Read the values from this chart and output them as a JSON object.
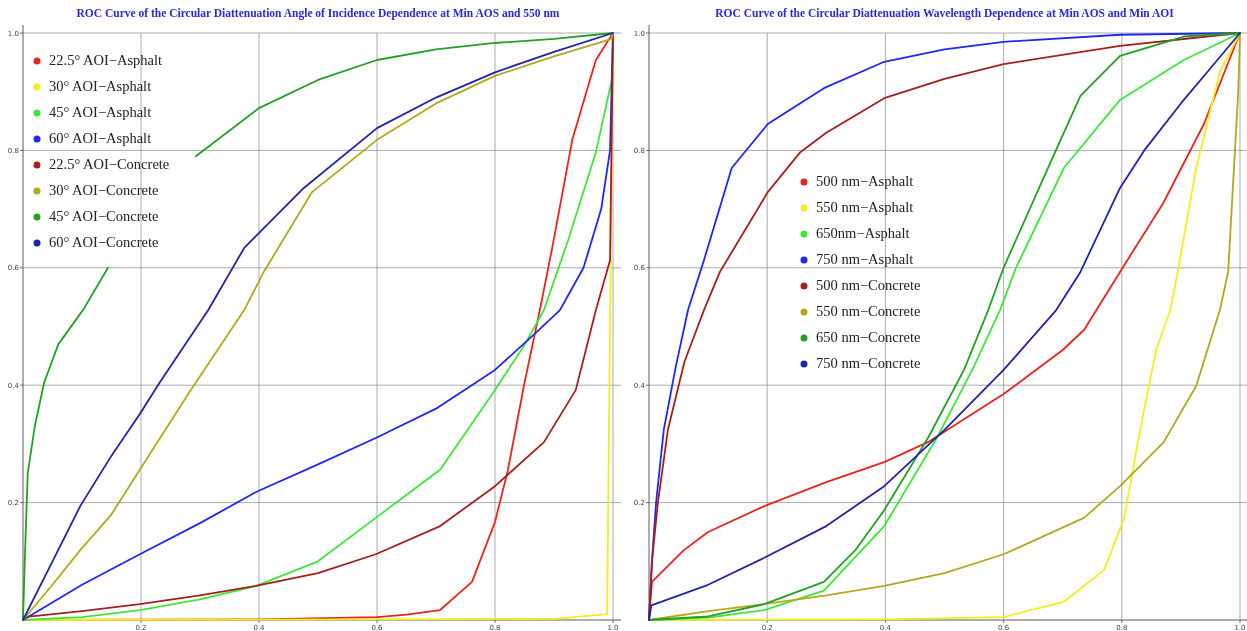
{
  "chart_data": [
    {
      "type": "line",
      "title": "ROC Curve of the Circular Diattenuation Angle of Incidence Dependence at Min AOS and 550 nm",
      "xlim": [
        0,
        1
      ],
      "ylim": [
        0,
        1
      ],
      "xticks": [
        0.2,
        0.4,
        0.6,
        0.8,
        {
          "value": 1,
          "label": "1.0"
        }
      ],
      "yticks": [
        0.2,
        0.4,
        0.6,
        0.8,
        {
          "value": 1,
          "label": "1.0"
        }
      ],
      "grid": true,
      "legend": "top left",
      "marker": "none",
      "line_style": "solid",
      "series": [
        {
          "name": "22.5° AOI−Asphalt",
          "color": "#e8241e",
          "x": [
            0,
            0.4,
            0.6,
            0.65,
            0.707,
            0.761,
            0.8,
            0.822,
            0.849,
            0.876,
            0.897,
            0.931,
            0.971,
            1
          ],
          "values": [
            0,
            0.001,
            0.005,
            0.009,
            0.017,
            0.065,
            0.167,
            0.256,
            0.399,
            0.528,
            0.634,
            0.818,
            0.954,
            1
          ]
        },
        {
          "name": "30° AOI−Asphalt",
          "color": "#f2ee1c",
          "x": [
            0,
            0.6,
            0.9,
            0.99,
            1
          ],
          "values": [
            0,
            0.001,
            0.002,
            0.01,
            1
          ]
        },
        {
          "name": "45° AOI−Asphalt",
          "color": "#3ee63a",
          "x": [
            0,
            0.1,
            0.198,
            0.3,
            0.395,
            0.5,
            0.598,
            0.707,
            0.8,
            0.849,
            0.883,
            0.924,
            0.971,
            0.998,
            1
          ],
          "values": [
            0,
            0.005,
            0.017,
            0.035,
            0.058,
            0.1,
            0.174,
            0.256,
            0.392,
            0.467,
            0.528,
            0.647,
            0.797,
            0.92,
            1
          ]
        },
        {
          "name": "60° AOI−Asphalt",
          "color": "#1f28f0",
          "x": [
            0,
            0.1,
            0.198,
            0.3,
            0.395,
            0.5,
            0.598,
            0.7,
            0.8,
            0.87,
            0.91,
            0.95,
            0.98,
            0.995,
            1
          ],
          "values": [
            0,
            0.06,
            0.112,
            0.165,
            0.218,
            0.265,
            0.31,
            0.36,
            0.426,
            0.49,
            0.528,
            0.6,
            0.7,
            0.8,
            1
          ]
        },
        {
          "name": "22.5° AOI−Concrete",
          "color": "#a3201c",
          "x": [
            0,
            0.002,
            0.1,
            0.198,
            0.3,
            0.395,
            0.5,
            0.598,
            0.707,
            0.8,
            0.883,
            0.937,
            0.971,
            0.995,
            1
          ],
          "values": [
            0,
            0.005,
            0.015,
            0.027,
            0.042,
            0.058,
            0.08,
            0.112,
            0.16,
            0.228,
            0.303,
            0.392,
            0.528,
            0.613,
            1
          ]
        },
        {
          "name": "30° AOI−Concrete",
          "color": "#b2a81e",
          "x": [
            0,
            0.05,
            0.097,
            0.15,
            0.198,
            0.28,
            0.375,
            0.408,
            0.49,
            0.6,
            0.7,
            0.8,
            0.9,
            0.998,
            1
          ],
          "values": [
            0,
            0.06,
            0.119,
            0.18,
            0.256,
            0.385,
            0.528,
            0.593,
            0.729,
            0.818,
            0.88,
            0.927,
            0.96,
            0.99,
            1
          ]
        },
        {
          "name": "45° AOI−Concrete",
          "color": "#22a022",
          "x": [
            0,
            0.003,
            0.008,
            0.02,
            0.036,
            0.06,
            0.103,
            0.144,
            0.2,
            0.293,
            0.4,
            0.5,
            0.6,
            0.7,
            0.8,
            0.9,
            1
          ],
          "values": [
            0,
            0.1,
            0.25,
            0.33,
            0.405,
            0.47,
            0.53,
            0.6,
            null,
            0.79,
            0.872,
            0.92,
            0.954,
            0.972,
            0.983,
            0.99,
            1
          ]
        },
        {
          "name": "60° AOI−Concrete",
          "color": "#2024a8",
          "x": [
            0,
            0.05,
            0.097,
            0.15,
            0.198,
            0.232,
            0.314,
            0.375,
            0.476,
            0.6,
            0.7,
            0.8,
            0.9,
            1
          ],
          "values": [
            0,
            0.1,
            0.194,
            0.28,
            0.351,
            0.405,
            0.528,
            0.634,
            0.736,
            0.838,
            0.89,
            0.933,
            0.968,
            1
          ]
        }
      ]
    },
    {
      "type": "line",
      "title": "ROC Curve of the Circular Diattenuation Wavelength Dependence at Min AOS and Min AOI",
      "xlim": [
        0,
        1
      ],
      "ylim": [
        0,
        1
      ],
      "xticks": [
        0.2,
        0.4,
        0.6,
        0.8,
        {
          "value": 1,
          "label": "1.0"
        }
      ],
      "yticks": [
        0.2,
        0.4,
        0.6,
        0.8,
        {
          "value": 1,
          "label": "1.0"
        }
      ],
      "grid": true,
      "legend": "left",
      "marker": "none",
      "line_style": "solid",
      "series": [
        {
          "name": "500 nm−Asphalt",
          "color": "#e8241e",
          "x": [
            0,
            0.005,
            0.059,
            0.1,
            0.195,
            0.3,
            0.398,
            0.472,
            0.6,
            0.7,
            0.736,
            0.797,
            0.87,
            0.939,
            1
          ],
          "values": [
            0,
            0.065,
            0.119,
            0.15,
            0.194,
            0.235,
            0.269,
            0.303,
            0.385,
            0.46,
            0.494,
            0.593,
            0.71,
            0.845,
            1
          ]
        },
        {
          "name": "550 nm−Asphalt",
          "color": "#f2ee1c",
          "x": [
            0,
            0.4,
            0.6,
            0.702,
            0.77,
            0.804,
            0.831,
            0.858,
            0.882,
            0.892,
            0.926,
            0.966,
            1
          ],
          "values": [
            0,
            0.001,
            0.005,
            0.031,
            0.085,
            0.174,
            0.324,
            0.46,
            0.528,
            0.579,
            0.77,
            0.934,
            1
          ]
        },
        {
          "name": "650nm−Asphalt",
          "color": "#3ee63a",
          "x": [
            0,
            0.1,
            0.195,
            0.296,
            0.398,
            0.487,
            0.547,
            0.594,
            0.621,
            0.702,
            0.797,
            0.905,
            1
          ],
          "values": [
            0,
            0.004,
            0.017,
            0.05,
            0.16,
            0.31,
            0.426,
            0.528,
            0.6,
            0.77,
            0.886,
            0.954,
            1
          ]
        },
        {
          "name": "750 nm−Asphalt",
          "color": "#1f28f0",
          "x": [
            0,
            0.005,
            0.012,
            0.025,
            0.045,
            0.066,
            0.093,
            0.14,
            0.201,
            0.296,
            0.398,
            0.5,
            0.6,
            0.797,
            1
          ],
          "values": [
            0,
            0.1,
            0.2,
            0.324,
            0.43,
            0.528,
            0.613,
            0.77,
            0.845,
            0.906,
            0.951,
            0.972,
            0.985,
            0.997,
            1
          ]
        },
        {
          "name": "500 nm−Concrete",
          "color": "#a3201c",
          "x": [
            0,
            0.005,
            0.015,
            0.032,
            0.06,
            0.093,
            0.12,
            0.201,
            0.256,
            0.3,
            0.398,
            0.5,
            0.6,
            0.797,
            1
          ],
          "values": [
            0,
            0.1,
            0.2,
            0.324,
            0.44,
            0.528,
            0.593,
            0.729,
            0.797,
            0.83,
            0.889,
            0.922,
            0.947,
            0.978,
            1
          ]
        },
        {
          "name": "550 nm−Concrete",
          "color": "#b2a81e",
          "x": [
            0,
            0.1,
            0.195,
            0.3,
            0.398,
            0.5,
            0.6,
            0.736,
            0.797,
            0.871,
            0.926,
            0.966,
            0.98,
            0.997,
            1
          ],
          "values": [
            0,
            0.015,
            0.027,
            0.042,
            0.058,
            0.08,
            0.112,
            0.174,
            0.228,
            0.303,
            0.399,
            0.528,
            0.593,
            0.9,
            1
          ]
        },
        {
          "name": "650 nm−Concrete",
          "color": "#22a022",
          "x": [
            0,
            0.1,
            0.195,
            0.296,
            0.35,
            0.398,
            0.472,
            0.533,
            0.574,
            0.6,
            0.675,
            0.73,
            0.797,
            0.905,
            1
          ],
          "values": [
            0,
            0.006,
            0.027,
            0.065,
            0.12,
            0.187,
            0.31,
            0.426,
            0.528,
            0.6,
            0.77,
            0.893,
            0.961,
            0.994,
            1
          ]
        },
        {
          "name": "750 nm−Concrete",
          "color": "#2024a8",
          "x": [
            0,
            0.004,
            0.1,
            0.195,
            0.3,
            0.398,
            0.5,
            0.6,
            0.689,
            0.73,
            0.797,
            0.838,
            0.9,
            0.95,
            1
          ],
          "values": [
            0,
            0.025,
            0.06,
            0.106,
            0.16,
            0.228,
            0.324,
            0.426,
            0.528,
            0.593,
            0.736,
            0.8,
            0.88,
            0.94,
            1
          ]
        }
      ]
    }
  ]
}
